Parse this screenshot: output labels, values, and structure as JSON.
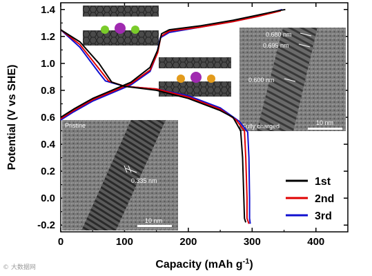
{
  "colors": {
    "series": [
      "#000000",
      "#e00000",
      "#1010d0"
    ]
  },
  "chart_data": {
    "type": "line",
    "xlabel": "Capacity (mAh g",
    "xlabel_sup": "-1",
    "xlabel_close": ")",
    "ylabel": "Potential (V vs SHE)",
    "xlim": [
      0,
      450
    ],
    "ylim": [
      -0.25,
      1.45
    ],
    "xticks": [
      0,
      100,
      200,
      300,
      400
    ],
    "yticks": [
      -0.2,
      0.0,
      0.2,
      0.4,
      0.6,
      0.8,
      1.0,
      1.2,
      1.4
    ],
    "ytick_labels": [
      "-0.2",
      "0.0",
      "0.2",
      "0.4",
      "0.6",
      "0.8",
      "1.0",
      "1.2",
      "1.4"
    ],
    "legend_position": "lower-right",
    "series": [
      {
        "name": "1st",
        "charge": [
          [
            0,
            0.6
          ],
          [
            20,
            0.66
          ],
          [
            50,
            0.74
          ],
          [
            80,
            0.8
          ],
          [
            110,
            0.86
          ],
          [
            140,
            0.97
          ],
          [
            152,
            1.1
          ],
          [
            158,
            1.22
          ],
          [
            170,
            1.25
          ],
          [
            220,
            1.28
          ],
          [
            270,
            1.32
          ],
          [
            310,
            1.36
          ],
          [
            340,
            1.39
          ],
          [
            352,
            1.4
          ]
        ],
        "discharge": [
          [
            0,
            1.25
          ],
          [
            30,
            1.16
          ],
          [
            60,
            1.0
          ],
          [
            80,
            0.86
          ],
          [
            100,
            0.83
          ],
          [
            150,
            0.8
          ],
          [
            200,
            0.74
          ],
          [
            250,
            0.65
          ],
          [
            270,
            0.6
          ],
          [
            282,
            0.5
          ],
          [
            285,
            0.3
          ],
          [
            287,
            0.0
          ],
          [
            288,
            -0.15
          ],
          [
            290,
            -0.18
          ]
        ]
      },
      {
        "name": "2nd",
        "charge": [
          [
            0,
            0.59
          ],
          [
            20,
            0.65
          ],
          [
            50,
            0.73
          ],
          [
            80,
            0.79
          ],
          [
            110,
            0.85
          ],
          [
            140,
            0.95
          ],
          [
            152,
            1.08
          ],
          [
            157,
            1.2
          ],
          [
            170,
            1.24
          ],
          [
            220,
            1.27
          ],
          [
            270,
            1.31
          ],
          [
            310,
            1.35
          ],
          [
            345,
            1.39
          ]
        ],
        "discharge": [
          [
            0,
            1.25
          ],
          [
            30,
            1.14
          ],
          [
            60,
            0.96
          ],
          [
            75,
            0.87
          ],
          [
            100,
            0.83
          ],
          [
            150,
            0.81
          ],
          [
            200,
            0.75
          ],
          [
            250,
            0.66
          ],
          [
            275,
            0.58
          ],
          [
            288,
            0.5
          ],
          [
            290,
            0.3
          ],
          [
            292,
            0.0
          ],
          [
            292,
            -0.15
          ],
          [
            295,
            -0.19
          ]
        ]
      },
      {
        "name": "3rd",
        "charge": [
          [
            0,
            0.58
          ],
          [
            20,
            0.64
          ],
          [
            50,
            0.72
          ],
          [
            80,
            0.78
          ],
          [
            110,
            0.84
          ],
          [
            140,
            0.94
          ],
          [
            150,
            1.06
          ],
          [
            156,
            1.19
          ],
          [
            170,
            1.23
          ],
          [
            220,
            1.27
          ],
          [
            270,
            1.31
          ],
          [
            310,
            1.35
          ],
          [
            347,
            1.4
          ]
        ],
        "discharge": [
          [
            0,
            1.25
          ],
          [
            30,
            1.12
          ],
          [
            60,
            0.93
          ],
          [
            70,
            0.87
          ],
          [
            100,
            0.83
          ],
          [
            150,
            0.81
          ],
          [
            200,
            0.76
          ],
          [
            250,
            0.67
          ],
          [
            280,
            0.57
          ],
          [
            293,
            0.49
          ],
          [
            295,
            0.3
          ],
          [
            296,
            0.0
          ],
          [
            296,
            -0.15
          ],
          [
            297,
            -0.19
          ]
        ]
      }
    ],
    "insets": [
      {
        "label": "Pristine",
        "scale_bar": "10 nm",
        "annotations": [
          "0.335 nm"
        ]
      },
      {
        "label": "Fully charged",
        "scale_bar": "10 nm",
        "annotations": [
          "0.680 nm",
          "0.695 nm",
          "0.600 nm"
        ]
      }
    ]
  },
  "watermark": "© 大数据网"
}
